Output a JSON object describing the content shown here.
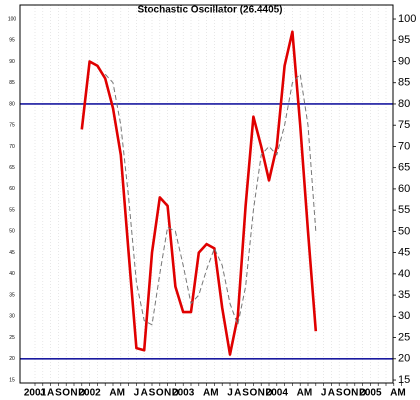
{
  "chart_data": {
    "type": "line",
    "title": "Stochastic Oscillator (26.4405)",
    "categories": [
      "2001",
      "J",
      "A",
      "S",
      "O",
      "N",
      "D",
      "2002",
      null,
      null,
      "A",
      "M",
      null,
      "J",
      "A",
      "S",
      "O",
      "N",
      "D",
      "2003",
      null,
      null,
      "A",
      "M",
      null,
      "J",
      "A",
      "S",
      "O",
      "N",
      "D",
      "2004",
      null,
      null,
      "A",
      "M",
      null,
      "J",
      "A",
      "S",
      "O",
      "N",
      "D",
      "2005",
      null,
      null,
      "A",
      "M"
    ],
    "series": [
      {
        "color": "#e00000",
        "dash": false,
        "values": [
          null,
          null,
          null,
          null,
          null,
          null,
          74,
          90,
          89,
          86,
          79,
          68,
          45,
          22.5,
          22,
          45,
          58,
          56,
          37,
          31,
          31,
          45,
          47,
          46,
          32,
          21,
          30,
          56,
          77,
          70,
          62,
          70,
          89,
          97,
          75,
          50,
          26.5,
          null,
          null,
          null,
          null,
          null,
          null,
          null,
          null,
          null,
          null,
          null
        ]
      },
      {
        "color": "#777777",
        "dash": true,
        "values": [
          null,
          null,
          null,
          null,
          null,
          null,
          null,
          null,
          null,
          87,
          85,
          75,
          58,
          38,
          29,
          28,
          40,
          51,
          50,
          42,
          33,
          35,
          41,
          46,
          42,
          33,
          28,
          37,
          55,
          68,
          70,
          68,
          75,
          85,
          87,
          75,
          50,
          null,
          null,
          null,
          null,
          null,
          null,
          null,
          null,
          null,
          null,
          null
        ]
      }
    ],
    "ylim": [
      14.3,
      103.3
    ],
    "yticks": [
      15,
      20,
      25,
      30,
      35,
      40,
      45,
      50,
      55,
      60,
      65,
      70,
      75,
      80,
      85,
      90,
      95,
      100
    ],
    "hlines": [
      80,
      20
    ],
    "hline_color": "#1a1aa0",
    "grid": true
  }
}
